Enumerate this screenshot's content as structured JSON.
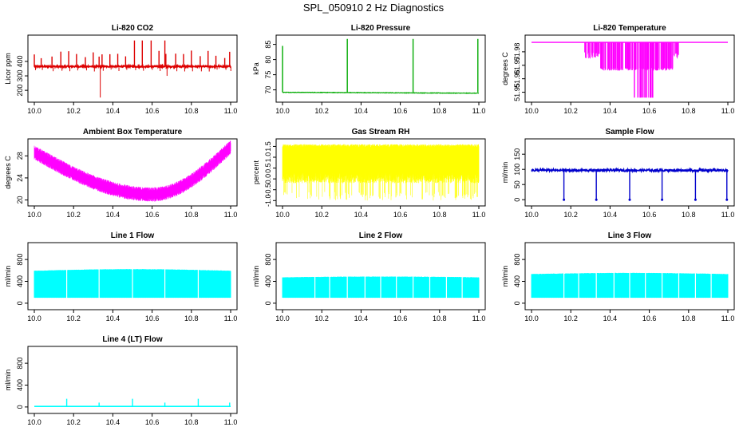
{
  "page": {
    "title": "SPL_050910  2 Hz Diagnostics"
  },
  "chart_data": [
    {
      "id": "co2",
      "type": "line",
      "title": "Li-820 CO2",
      "ylabel": "Licor ppm",
      "xlim": [
        10.0,
        11.0
      ],
      "ylim": [
        140,
        560
      ],
      "xticks": [
        10.0,
        10.2,
        10.4,
        10.6,
        10.8,
        11.0
      ],
      "yticks": [
        200,
        300,
        400
      ],
      "color": "#dd0000",
      "pattern": "co2",
      "series": [
        {
          "baseline": 365,
          "noise": 5,
          "spikes": [
            10.0,
            10.035,
            10.09,
            10.135,
            10.175,
            10.215,
            10.26,
            10.3,
            10.33,
            10.345,
            10.385,
            10.425,
            10.465,
            10.51,
            10.55,
            10.595,
            10.635,
            10.665,
            10.67,
            10.72,
            10.76,
            10.8,
            10.845,
            10.885,
            10.925,
            10.97,
            10.995
          ]
        }
      ]
    },
    {
      "id": "pressure",
      "type": "line",
      "title": "Li-820 Pressure",
      "ylabel": "kPa",
      "xlim": [
        10.0,
        11.0
      ],
      "ylim": [
        67,
        87
      ],
      "xticks": [
        10.0,
        10.2,
        10.4,
        10.6,
        10.8,
        11.0
      ],
      "yticks": [
        70,
        75,
        80,
        85
      ],
      "color": "#00aa00",
      "pattern": "pressure",
      "series": [
        {
          "baseline": 69.2,
          "noise": 0.15,
          "spikes": [
            10.0,
            10.33,
            10.665,
            10.995
          ]
        }
      ]
    },
    {
      "id": "temperature",
      "type": "line",
      "title": "Li-820 Temperature",
      "ylabel": "degrees C",
      "xlim": [
        10.0,
        11.0
      ],
      "ylim": [
        51.945,
        51.99
      ],
      "xticks": [
        10.0,
        10.2,
        10.4,
        10.6,
        10.8,
        11.0
      ],
      "yticks": [
        51.95,
        51.96,
        51.97,
        51.98
      ],
      "ytick_labels": [
        "51.95",
        "51.96",
        "51.97",
        "51.98"
      ],
      "color": "#ff00ff",
      "pattern": "temp",
      "series": [
        {
          "baseline": 51.987
        }
      ]
    },
    {
      "id": "ambient",
      "type": "line",
      "title": "Ambient Box Temperature",
      "ylabel": "degrees C",
      "xlim": [
        10.0,
        11.0
      ],
      "ylim": [
        19.5,
        30.5
      ],
      "xticks": [
        10.0,
        10.2,
        10.4,
        10.6,
        10.8,
        11.0
      ],
      "yticks": [
        20,
        24,
        28
      ],
      "color": "#ff00ff",
      "pattern": "ambient",
      "series": [
        {
          "start": 28.6,
          "min": 21.0,
          "end": 29.6
        }
      ]
    },
    {
      "id": "rh",
      "type": "line",
      "title": "Gas Stream RH",
      "ylabel": "percent",
      "xlim": [
        10.0,
        11.0
      ],
      "ylim": [
        -1.1,
        1.7
      ],
      "xticks": [
        10.0,
        10.2,
        10.4,
        10.6,
        10.8,
        11.0
      ],
      "yticks": [
        -1.0,
        -0.5,
        0.0,
        0.5,
        1.0,
        1.5
      ],
      "ytick_labels": [
        "-1.0",
        "-0.5",
        "0.0",
        "0.5",
        "1.0",
        "1.5"
      ],
      "color": "#ffff00",
      "pattern": "rh",
      "series": [
        {
          "top": 1.45,
          "bottom": -0.2
        }
      ]
    },
    {
      "id": "sample",
      "type": "line",
      "title": "Sample Flow",
      "ylabel": "ml/min",
      "xlim": [
        10.0,
        11.0
      ],
      "ylim": [
        -10,
        190
      ],
      "xticks": [
        10.0,
        10.2,
        10.4,
        10.6,
        10.8,
        11.0
      ],
      "yticks": [
        0,
        50,
        100,
        150
      ],
      "color": "#0000cc",
      "pattern": "sample",
      "series": [
        {
          "baseline": 97,
          "noise": 4,
          "dips": [
            10.165,
            10.33,
            10.5,
            10.665,
            10.835,
            10.995
          ]
        }
      ]
    },
    {
      "id": "line1",
      "type": "area",
      "title": "Line 1 Flow",
      "ylabel": "ml/min",
      "xlim": [
        10.0,
        11.0
      ],
      "ylim": [
        -60,
        1050
      ],
      "xticks": [
        10.0,
        10.2,
        10.4,
        10.6,
        10.8,
        11.0
      ],
      "yticks": [
        0,
        400,
        800
      ],
      "color": "#00ffff",
      "pattern": "band",
      "series": [
        {
          "top": 590,
          "bottom": 100,
          "bumps": 0.05,
          "gaps": [
            10.165,
            10.33,
            10.5,
            10.665,
            10.835
          ]
        }
      ]
    },
    {
      "id": "line2",
      "type": "area",
      "title": "Line 2 Flow",
      "ylabel": "ml/min",
      "xlim": [
        10.0,
        11.0
      ],
      "ylim": [
        -60,
        1050
      ],
      "xticks": [
        10.0,
        10.2,
        10.4,
        10.6,
        10.8,
        11.0
      ],
      "yticks": [
        0,
        400,
        800
      ],
      "color": "#00ffff",
      "pattern": "band",
      "series": [
        {
          "top": 470,
          "bottom": 100,
          "bumps": 0.03,
          "gaps": [
            10.165,
            10.24,
            10.33,
            10.42,
            10.5,
            10.58,
            10.665,
            10.75,
            10.835,
            10.915
          ]
        }
      ]
    },
    {
      "id": "line3",
      "type": "area",
      "title": "Line 3 Flow",
      "ylabel": "ml/min",
      "xlim": [
        10.0,
        11.0
      ],
      "ylim": [
        -60,
        1050
      ],
      "xticks": [
        10.0,
        10.2,
        10.4,
        10.6,
        10.8,
        11.0
      ],
      "yticks": [
        0,
        400,
        800
      ],
      "color": "#00ffff",
      "pattern": "band",
      "series": [
        {
          "top": 530,
          "bottom": 100,
          "bumps": 0.04,
          "gaps": [
            10.165,
            10.24,
            10.33,
            10.42,
            10.5,
            10.58,
            10.665,
            10.75,
            10.835,
            10.915
          ]
        }
      ]
    },
    {
      "id": "line4",
      "type": "line",
      "title": "Line 4 (LT) Flow",
      "ylabel": "ml/min",
      "xlim": [
        10.0,
        11.0
      ],
      "ylim": [
        -60,
        1050
      ],
      "xticks": [
        10.0,
        10.2,
        10.4,
        10.6,
        10.8,
        11.0
      ],
      "yticks": [
        0,
        400,
        800
      ],
      "color": "#00ffff",
      "pattern": "line4",
      "series": [
        {
          "baseline": 10,
          "spikes": [
            10.165,
            10.33,
            10.5,
            10.665,
            10.835,
            10.995
          ],
          "spike_heights": [
            150,
            80,
            150,
            80,
            150,
            80
          ]
        }
      ]
    }
  ]
}
